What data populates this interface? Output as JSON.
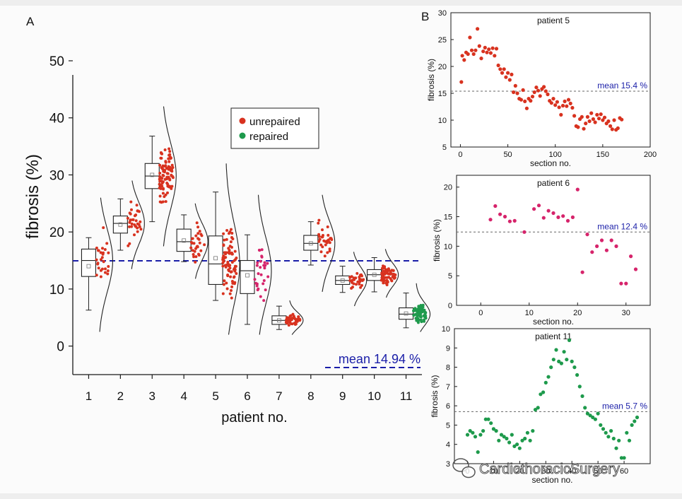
{
  "colors": {
    "unrepaired": "#d8321f",
    "repaired": "#1e9a4c",
    "patient6": "#d6246b",
    "mean_line": "#1a1ea8",
    "axis": "#1a1a1a"
  },
  "watermark": {
    "text": "CardiothoracicSurgery",
    "icon": "wechat-icon"
  },
  "chart_data": [
    {
      "type": "box-scatter",
      "panel_label": "A",
      "title": "",
      "xlabel": "patient no.",
      "ylabel": "fibrosis (%)",
      "xlim": [
        0.5,
        11.5
      ],
      "ylim": [
        -5,
        50
      ],
      "yticks": [
        0,
        10,
        20,
        30,
        40,
        50
      ],
      "categories": [
        "1",
        "2",
        "3",
        "4",
        "5",
        "6",
        "7",
        "8",
        "9",
        "10",
        "11"
      ],
      "legend": [
        {
          "label": "unrepaired",
          "color": "#d8321f"
        },
        {
          "label": "repaired",
          "color": "#1e9a4c"
        }
      ],
      "mean": {
        "value": 14.94,
        "label": "mean 14.94 %"
      },
      "boxes": [
        {
          "patient": "1",
          "whisker_low": 6.3,
          "q1": 12.2,
          "median": 15.0,
          "q3": 17.0,
          "whisker_high": 19.0,
          "mean": 14.0,
          "color": "#d8321f",
          "n": 28,
          "dist_low": 2.5,
          "dist_high": 26
        },
        {
          "patient": "2",
          "whisker_low": 16.8,
          "q1": 19.8,
          "median": 21.5,
          "q3": 22.8,
          "whisker_high": 25.8,
          "mean": 21.3,
          "color": "#d8321f",
          "n": 34,
          "dist_low": 13.5,
          "dist_high": 29
        },
        {
          "patient": "3",
          "whisker_low": 21.8,
          "q1": 27.6,
          "median": 29.8,
          "q3": 32.0,
          "whisker_high": 36.8,
          "mean": 30.0,
          "color": "#d8321f",
          "n": 90,
          "dist_low": 17.5,
          "dist_high": 42
        },
        {
          "patient": "4",
          "whisker_low": 14.8,
          "q1": 16.6,
          "median": 18.3,
          "q3": 20.5,
          "whisker_high": 23.0,
          "mean": 18.5,
          "color": "#d8321f",
          "n": 30,
          "dist_low": 11.8,
          "dist_high": 25
        },
        {
          "patient": "5",
          "whisker_low": 8.0,
          "q1": 10.8,
          "median": 14.4,
          "q3": 19.3,
          "whisker_high": 27.0,
          "mean": 15.4,
          "color": "#d8321f",
          "n": 80,
          "dist_low": 2.0,
          "dist_high": 32
        },
        {
          "patient": "6",
          "whisker_low": 3.8,
          "q1": 9.2,
          "median": 13.2,
          "q3": 15.0,
          "whisker_high": 19.5,
          "mean": 12.4,
          "color": "#d6246b",
          "n": 28,
          "dist_low": 2.0,
          "dist_high": 26.5
        },
        {
          "patient": "7",
          "whisker_low": 2.9,
          "q1": 3.8,
          "median": 4.5,
          "q3": 5.3,
          "whisker_high": 7.0,
          "mean": 4.5,
          "color": "#d8321f",
          "n": 40,
          "dist_low": 2.0,
          "dist_high": 8
        },
        {
          "patient": "8",
          "whisker_low": 14.2,
          "q1": 16.8,
          "median": 18.0,
          "q3": 19.4,
          "whisker_high": 21.8,
          "mean": 18.0,
          "color": "#d8321f",
          "n": 30,
          "dist_low": 9.5,
          "dist_high": 26.5
        },
        {
          "patient": "9",
          "whisker_low": 9.4,
          "q1": 10.8,
          "median": 11.5,
          "q3": 12.3,
          "whisker_high": 14.0,
          "mean": 11.5,
          "color": "#d8321f",
          "n": 30,
          "dist_low": 7.0,
          "dist_high": 16.5
        },
        {
          "patient": "10",
          "whisker_low": 9.5,
          "q1": 11.5,
          "median": 12.5,
          "q3": 13.4,
          "whisker_high": 15.5,
          "mean": 12.5,
          "color": "#d8321f",
          "n": 60,
          "dist_low": 8.5,
          "dist_high": 17
        },
        {
          "patient": "11",
          "whisker_low": 3.2,
          "q1": 4.7,
          "median": 5.6,
          "q3": 6.7,
          "whisker_high": 9.3,
          "mean": 5.7,
          "color": "#1e9a4c",
          "n": 60,
          "dist_low": 2.5,
          "dist_high": 11
        }
      ]
    },
    {
      "type": "scatter",
      "panel_label": "B",
      "title": "patient 5",
      "xlabel": "section no.",
      "ylabel": "fibrosis (%)",
      "xlim": [
        -10,
        200
      ],
      "ylim": [
        5,
        30
      ],
      "xticks": [
        0,
        50,
        100,
        150,
        200
      ],
      "yticks": [
        5,
        10,
        15,
        20,
        25,
        30
      ],
      "color": "#d8321f",
      "mean": {
        "value": 15.4,
        "label": "mean 15.4 %"
      },
      "x": [
        1,
        2,
        4,
        6,
        8,
        10,
        12,
        14,
        16,
        18,
        20,
        22,
        24,
        26,
        28,
        30,
        32,
        34,
        36,
        38,
        40,
        42,
        44,
        46,
        48,
        50,
        52,
        54,
        56,
        58,
        60,
        62,
        64,
        66,
        68,
        70,
        72,
        74,
        76,
        78,
        80,
        82,
        84,
        86,
        88,
        90,
        92,
        94,
        96,
        98,
        100,
        102,
        104,
        106,
        108,
        110,
        112,
        114,
        116,
        118,
        120,
        122,
        124,
        126,
        128,
        130,
        132,
        134,
        136,
        138,
        140,
        142,
        144,
        146,
        148,
        150,
        152,
        154,
        156,
        158,
        160,
        162,
        164,
        166,
        168,
        170
      ],
      "y": [
        17.1,
        22.0,
        21.2,
        22.6,
        22.3,
        25.4,
        23.0,
        22.3,
        23.0,
        27.0,
        23.8,
        21.5,
        22.8,
        23.5,
        22.6,
        23.2,
        22.5,
        23.4,
        22.0,
        23.3,
        20.2,
        19.5,
        18.8,
        19.5,
        18.0,
        18.8,
        17.5,
        18.5,
        15.2,
        16.4,
        15.0,
        14.0,
        13.8,
        15.6,
        13.5,
        12.2,
        14.0,
        13.6,
        14.4,
        15.2,
        16.1,
        15.5,
        14.5,
        15.8,
        16.2,
        15.4,
        14.8,
        13.6,
        13.2,
        14.0,
        12.8,
        13.4,
        12.4,
        11.0,
        12.7,
        13.5,
        12.6,
        13.8,
        13.1,
        12.3,
        10.8,
        8.9,
        8.7,
        10.2,
        10.6,
        8.4,
        9.4,
        10.6,
        9.8,
        11.3,
        10.2,
        9.6,
        11.0,
        10.3,
        11.1,
        10.0,
        10.5,
        9.4,
        9.8,
        8.9,
        8.3,
        10.0,
        8.2,
        8.5,
        10.4,
        10.1
      ]
    },
    {
      "type": "scatter",
      "title": "patient 6",
      "xlabel": "section no.",
      "ylabel": "fibrosis (%)",
      "xlim": [
        -5,
        35
      ],
      "ylim": [
        0,
        22
      ],
      "xticks": [
        0,
        10,
        20,
        30
      ],
      "yticks": [
        0,
        5,
        10,
        15,
        20
      ],
      "color": "#d6246b",
      "mean": {
        "value": 12.4,
        "label": "mean 12.4 %"
      },
      "x": [
        2,
        3,
        4,
        5,
        6,
        7,
        9,
        11,
        12,
        13,
        14,
        15,
        16,
        17,
        18,
        19,
        20,
        21,
        22,
        23,
        24,
        25,
        26,
        27,
        28,
        29,
        30,
        31,
        32
      ],
      "y": [
        14.5,
        16.8,
        15.4,
        15.0,
        14.2,
        14.3,
        12.4,
        16.3,
        16.9,
        14.8,
        16.0,
        15.6,
        14.9,
        15.1,
        14.3,
        14.9,
        19.6,
        5.6,
        12.0,
        9.0,
        10.0,
        11.0,
        9.3,
        11.0,
        10.0,
        3.7,
        3.7,
        8.3,
        6.1
      ]
    },
    {
      "type": "scatter",
      "title": "patient 11",
      "xlabel": "section no.",
      "ylabel": "fibrosis (%)",
      "xlim": [
        -5,
        70
      ],
      "ylim": [
        3,
        10
      ],
      "xticks": [
        0,
        10,
        20,
        30,
        40,
        50,
        60
      ],
      "yticks": [
        3,
        4,
        5,
        6,
        7,
        8,
        9,
        10
      ],
      "color": "#1e9a4c",
      "mean": {
        "value": 5.7,
        "label": "mean 5.7 %"
      },
      "x": [
        0,
        1,
        2,
        3,
        4,
        5,
        6,
        7,
        8,
        9,
        10,
        11,
        12,
        13,
        14,
        15,
        16,
        17,
        18,
        19,
        20,
        21,
        22,
        23,
        24,
        25,
        26,
        27,
        28,
        29,
        30,
        31,
        32,
        33,
        34,
        35,
        36,
        37,
        38,
        39,
        40,
        41,
        42,
        43,
        44,
        45,
        46,
        47,
        48,
        49,
        50,
        51,
        52,
        53,
        54,
        55,
        56,
        57,
        58,
        59,
        60,
        61,
        62,
        63,
        64,
        65
      ],
      "y": [
        4.5,
        4.7,
        4.6,
        4.4,
        3.6,
        4.5,
        4.7,
        5.3,
        5.3,
        5.1,
        4.8,
        4.7,
        4.2,
        4.5,
        4.4,
        4.3,
        4.1,
        4.5,
        3.9,
        4.0,
        3.8,
        4.2,
        4.3,
        4.6,
        4.2,
        4.7,
        5.8,
        5.9,
        6.6,
        6.7,
        7.2,
        7.5,
        8.0,
        8.4,
        8.9,
        8.3,
        8.2,
        8.8,
        8.4,
        9.4,
        8.3,
        8.0,
        7.6,
        7.0,
        6.5,
        5.9,
        5.6,
        5.5,
        5.4,
        5.3,
        5.6,
        5.0,
        4.8,
        4.6,
        4.4,
        4.7,
        4.3,
        3.8,
        4.2,
        3.3,
        3.3,
        4.6,
        4.2,
        5.0,
        5.2,
        5.4
      ]
    }
  ]
}
